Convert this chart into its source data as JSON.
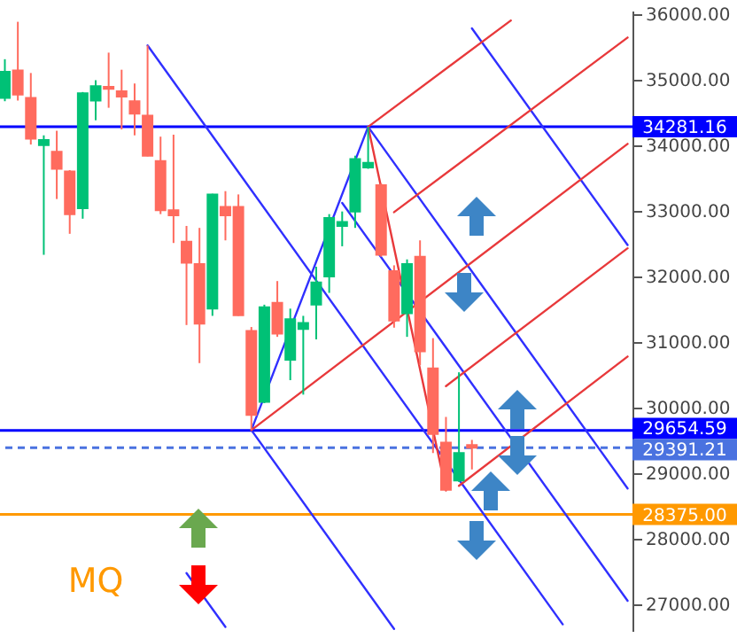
{
  "chart_data": {
    "type": "candlestick",
    "annotations": [
      "MQ"
    ],
    "categories": [
      null,
      null,
      null,
      null,
      null,
      null,
      null,
      null,
      null,
      null,
      null,
      null,
      null,
      null,
      null,
      null,
      null,
      null,
      null,
      null,
      null,
      null,
      null,
      null,
      null,
      null,
      null,
      null,
      null,
      null,
      null,
      null,
      null,
      null,
      null,
      null,
      null,
      null,
      null,
      null,
      null,
      null,
      null,
      null,
      null,
      null,
      null,
      null,
      null
    ],
    "ohlc": [
      [
        34720,
        35310,
        34670,
        35120
      ],
      [
        35140,
        35880,
        34680,
        34770
      ],
      [
        34720,
        35100,
        34010,
        34100
      ],
      [
        34000,
        34150,
        32330,
        34080
      ],
      [
        33900,
        34220,
        33180,
        33640
      ],
      [
        33600,
        33620,
        32650,
        32950
      ],
      [
        33040,
        34810,
        32880,
        34790
      ],
      [
        34680,
        34990,
        34380,
        34900
      ],
      [
        34890,
        35410,
        34570,
        34860
      ],
      [
        34820,
        35150,
        34240,
        34740
      ],
      [
        34670,
        34940,
        34150,
        34480
      ],
      [
        34450,
        35520,
        33830,
        33840
      ],
      [
        33760,
        34130,
        32950,
        33010
      ],
      [
        33010,
        34160,
        32510,
        32930
      ],
      [
        32530,
        32770,
        31260,
        32210
      ],
      [
        32190,
        32740,
        30680,
        31280
      ],
      [
        31510,
        33260,
        31400,
        33250
      ],
      [
        33060,
        33300,
        32550,
        32930
      ],
      [
        33060,
        33250,
        31400,
        31410
      ],
      [
        31170,
        31230,
        29660,
        29890
      ],
      [
        30090,
        31570,
        30070,
        31530
      ],
      [
        31600,
        31930,
        31080,
        31130
      ],
      [
        30730,
        31510,
        30420,
        31350
      ],
      [
        31200,
        31400,
        30200,
        31290
      ],
      [
        31570,
        32150,
        31040,
        31910
      ],
      [
        32000,
        32950,
        31750,
        32890
      ],
      [
        32770,
        32990,
        32460,
        32830
      ],
      [
        32990,
        33840,
        32740,
        33790
      ],
      [
        33660,
        34281,
        33640,
        33730
      ],
      [
        33390,
        33420,
        32300,
        32330
      ],
      [
        32080,
        32170,
        31220,
        31330
      ],
      [
        31440,
        32260,
        31080,
        32190
      ],
      [
        32300,
        32550,
        30650,
        30860
      ],
      [
        30600,
        31060,
        29310,
        29600
      ],
      [
        29470,
        29860,
        28740,
        28750
      ],
      [
        28890,
        30540,
        28870,
        29310
      ],
      [
        29430,
        29510,
        29060,
        29390
      ],
      null,
      null,
      null,
      null,
      null,
      null,
      null,
      null,
      null,
      null,
      null,
      null
    ],
    "colors": [
      "#00c176",
      "#ff6b5e",
      "#ff6b5e",
      "#00c176",
      "#ff6b5e",
      "#ff6b5e",
      "#00c176",
      "#00c176",
      "#ff6b5e",
      "#ff6b5e",
      "#ff6b5e",
      "#ff6b5e",
      "#ff6b5e",
      "#ff6b5e",
      "#ff6b5e",
      "#ff6b5e",
      "#00c176",
      "#ff6b5e",
      "#ff6b5e",
      "#ff6b5e",
      "#00c176",
      "#ff6b5e",
      "#00c176",
      "#00c176",
      "#00c176",
      "#00c176",
      "#00c176",
      "#00c176",
      "#00c176",
      "#ff6b5e",
      "#ff6b5e",
      "#00c176",
      "#ff6b5e",
      "#ff6b5e",
      "#ff6b5e",
      "#00c176",
      "#ff6b5e",
      null,
      null,
      null,
      null,
      null,
      null,
      null,
      null,
      null,
      null,
      null,
      null
    ],
    "series": [
      {
        "type": "line",
        "color": "#3030ff",
        "values": [
          null,
          null,
          null,
          null,
          null,
          null,
          null,
          null,
          null,
          null,
          null,
          35520,
          null,
          null,
          null,
          null,
          null,
          null,
          null,
          null,
          null,
          null,
          null,
          null,
          null,
          null,
          null,
          null,
          null,
          null,
          null,
          null,
          null,
          null,
          null,
          null,
          null,
          null,
          null,
          null,
          null,
          null,
          null,
          26700,
          null,
          null,
          null,
          null,
          null
        ]
      },
      {
        "type": "line",
        "color": "#3030ff",
        "values": [
          null,
          null,
          null,
          null,
          null,
          null,
          null,
          null,
          null,
          null,
          null,
          null,
          null,
          null,
          null,
          null,
          null,
          null,
          null,
          29660,
          null,
          null,
          null,
          null,
          null,
          null,
          null,
          null,
          34280,
          null,
          null,
          null,
          null,
          null,
          null,
          null,
          null,
          null,
          null,
          null,
          null,
          null,
          null,
          null,
          null,
          null,
          null,
          null,
          null
        ]
      },
      {
        "type": "line",
        "color": "#3030ff",
        "values": [
          null,
          null,
          null,
          null,
          null,
          null,
          null,
          null,
          null,
          null,
          null,
          null,
          null,
          null,
          null,
          null,
          null,
          null,
          null,
          29660,
          null,
          null,
          null,
          null,
          null,
          null,
          null,
          null,
          null,
          null,
          26630,
          null,
          null,
          null,
          null,
          null,
          null,
          null,
          null,
          null,
          null,
          null,
          null,
          null,
          null,
          null,
          null,
          null,
          null
        ]
      },
      {
        "type": "line",
        "color": "#3030ff",
        "values": [
          null,
          null,
          null,
          null,
          null,
          null,
          null,
          null,
          null,
          null,
          null,
          null,
          null,
          null,
          null,
          null,
          null,
          null,
          null,
          null,
          null,
          null,
          null,
          null,
          null,
          null,
          null,
          null,
          34280,
          null,
          null,
          null,
          null,
          null,
          null,
          null,
          null,
          null,
          null,
          null,
          null,
          null,
          null,
          null,
          null,
          null,
          null,
          null,
          28770
        ]
      },
      {
        "type": "line",
        "color": "#3030ff",
        "values": [
          null,
          null,
          null,
          null,
          null,
          null,
          null,
          null,
          null,
          null,
          null,
          null,
          null,
          null,
          null,
          null,
          null,
          null,
          null,
          null,
          null,
          null,
          null,
          null,
          null,
          null,
          null,
          null,
          null,
          null,
          null,
          null,
          null,
          null,
          null,
          null,
          35780,
          null,
          null,
          null,
          null,
          null,
          null,
          null,
          null,
          null,
          null,
          null,
          32480
        ]
      },
      {
        "type": "line",
        "color": "#3030ff",
        "values": [
          null,
          null,
          null,
          null,
          null,
          null,
          null,
          null,
          null,
          null,
          null,
          null,
          null,
          null,
          null,
          null,
          null,
          null,
          null,
          null,
          null,
          null,
          null,
          null,
          null,
          null,
          33120,
          null,
          null,
          null,
          null,
          null,
          null,
          null,
          null,
          null,
          null,
          null,
          null,
          null,
          null,
          null,
          null,
          null,
          null,
          null,
          null,
          null,
          27060
        ]
      },
      {
        "type": "line",
        "color": "#3030ff",
        "values": [
          null,
          null,
          null,
          null,
          null,
          null,
          null,
          null,
          null,
          null,
          null,
          null,
          null,
          null,
          27480,
          null,
          null,
          26660,
          null,
          null,
          null,
          null,
          null,
          null,
          null,
          null,
          null,
          null,
          null,
          null,
          null,
          null,
          null,
          null,
          null,
          null,
          null,
          null,
          null,
          null,
          null,
          null,
          null,
          null,
          null,
          null,
          null,
          null,
          null
        ]
      },
      {
        "type": "line",
        "color": "#e8393b",
        "values": [
          null,
          null,
          null,
          null,
          null,
          null,
          null,
          null,
          null,
          null,
          null,
          null,
          null,
          null,
          null,
          null,
          null,
          null,
          null,
          null,
          null,
          null,
          null,
          null,
          null,
          null,
          null,
          null,
          34280,
          null,
          null,
          null,
          null,
          null,
          null,
          null,
          null,
          null,
          null,
          35900,
          null,
          null,
          null,
          null,
          null,
          null,
          null,
          null,
          null
        ]
      },
      {
        "type": "line",
        "color": "#e8393b",
        "values": [
          null,
          null,
          null,
          null,
          null,
          null,
          null,
          null,
          null,
          null,
          null,
          null,
          null,
          null,
          null,
          null,
          null,
          null,
          null,
          null,
          null,
          null,
          null,
          null,
          null,
          null,
          null,
          null,
          null,
          null,
          32980,
          null,
          null,
          null,
          null,
          null,
          null,
          null,
          null,
          null,
          null,
          null,
          null,
          null,
          null,
          null,
          null,
          null,
          35640
        ]
      },
      {
        "type": "line",
        "color": "#e8393b",
        "values": [
          null,
          null,
          null,
          null,
          null,
          null,
          null,
          null,
          null,
          null,
          null,
          null,
          null,
          null,
          null,
          null,
          null,
          null,
          null,
          29660,
          null,
          null,
          null,
          null,
          null,
          null,
          null,
          null,
          null,
          null,
          null,
          null,
          null,
          null,
          null,
          null,
          null,
          null,
          null,
          null,
          null,
          null,
          null,
          null,
          null,
          null,
          null,
          null,
          34020
        ]
      },
      {
        "type": "line",
        "color": "#e8393b",
        "values": [
          null,
          null,
          null,
          null,
          null,
          null,
          null,
          null,
          null,
          null,
          null,
          null,
          null,
          null,
          null,
          null,
          null,
          null,
          null,
          null,
          null,
          null,
          null,
          null,
          null,
          null,
          null,
          null,
          null,
          null,
          null,
          null,
          null,
          null,
          30330,
          null,
          null,
          null,
          null,
          null,
          null,
          null,
          null,
          null,
          null,
          null,
          null,
          null,
          32430
        ]
      },
      {
        "type": "line",
        "color": "#e8393b",
        "values": [
          null,
          null,
          null,
          null,
          null,
          null,
          null,
          null,
          null,
          null,
          null,
          null,
          null,
          null,
          null,
          null,
          null,
          null,
          null,
          null,
          null,
          null,
          null,
          null,
          null,
          null,
          null,
          null,
          null,
          null,
          null,
          null,
          null,
          null,
          null,
          28810,
          null,
          null,
          null,
          null,
          null,
          null,
          null,
          null,
          null,
          null,
          null,
          null,
          30780
        ]
      },
      {
        "type": "line",
        "color": "#e8393b",
        "values": [
          null,
          null,
          null,
          null,
          null,
          null,
          null,
          null,
          null,
          null,
          null,
          null,
          null,
          null,
          null,
          null,
          null,
          null,
          null,
          null,
          null,
          null,
          null,
          null,
          null,
          null,
          null,
          null,
          34280,
          null,
          null,
          null,
          null,
          null,
          28740,
          null,
          null,
          null,
          null,
          null,
          null,
          null,
          null,
          null,
          null,
          null,
          null,
          null,
          null
        ]
      }
    ],
    "ylim": [
      26600,
      36050
    ],
    "yticks": [
      {
        "value": 27000,
        "label": "27000.00"
      },
      {
        "value": 28000,
        "label": "28000.00"
      },
      {
        "value": 29000,
        "label": "29000.00"
      },
      {
        "value": 30000,
        "label": "30000.00"
      },
      {
        "value": 31000,
        "label": "31000.00"
      },
      {
        "value": 32000,
        "label": "32000.00"
      },
      {
        "value": 33000,
        "label": "33000.00"
      },
      {
        "value": 34000,
        "label": "34000.00"
      },
      {
        "value": 35000,
        "label": "35000.00"
      },
      {
        "value": 36000,
        "label": "36000.00"
      }
    ],
    "ref_lines": [
      {
        "axis": "y",
        "value": 34281.16,
        "label": "34281.16",
        "color": "#0000ff",
        "line_style": "solid"
      },
      {
        "axis": "y",
        "value": 29654.59,
        "label": "29654.59",
        "color": "#0000ff",
        "line_style": "solid"
      },
      {
        "axis": "y",
        "value": 29391.21,
        "label": "29391.21",
        "color": "#4a72e0",
        "line_style": "dashed"
      },
      {
        "axis": "y",
        "value": 28375.0,
        "label": "28375.00",
        "color": "#ff9900",
        "line_style": "solid"
      }
    ],
    "tick_labels": "y"
  }
}
